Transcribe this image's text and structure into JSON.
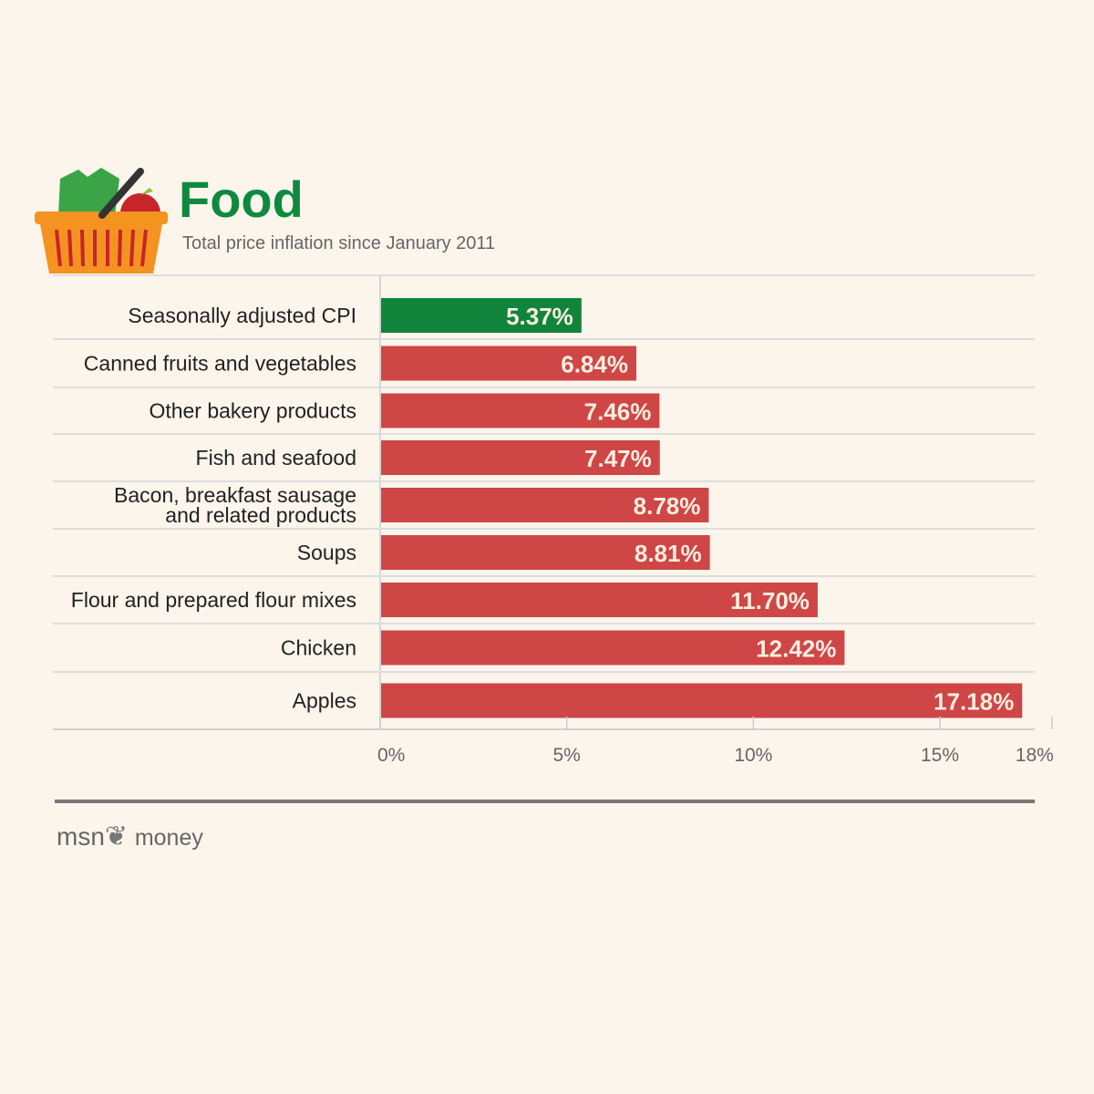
{
  "header": {
    "title": "Food",
    "subtitle": "Total price inflation since January 2011",
    "icon": "shopping-basket-icon"
  },
  "colors": {
    "highlight": "#11843c",
    "bar": "#cf4646",
    "title": "#0e8a3e"
  },
  "chart_data": {
    "type": "bar",
    "orientation": "horizontal",
    "title": "Food",
    "subtitle": "Total price inflation since January 2011",
    "categories": [
      "Seasonally adjusted CPI",
      "Canned fruits and vegetables",
      "Other bakery products",
      "Fish and seafood",
      "Bacon, breakfast sausage\nand related products",
      "Soups",
      "Flour and prepared flour mixes",
      "Chicken",
      "Apples"
    ],
    "values": [
      5.37,
      6.84,
      7.46,
      7.47,
      8.78,
      8.81,
      11.7,
      12.42,
      17.18
    ],
    "labels": [
      "5.37%",
      "6.84%",
      "7.46%",
      "7.47%",
      "8.78%",
      "8.81%",
      "11.70%",
      "12.42%",
      "17.18%"
    ],
    "xlim": [
      0,
      18
    ],
    "ticks": [
      0,
      5,
      10,
      15,
      18
    ],
    "tick_labels": [
      "0%",
      "5%",
      "10%",
      "15%",
      "18%"
    ],
    "grid": false
  },
  "footer": {
    "brand": "msn",
    "section": "money"
  }
}
